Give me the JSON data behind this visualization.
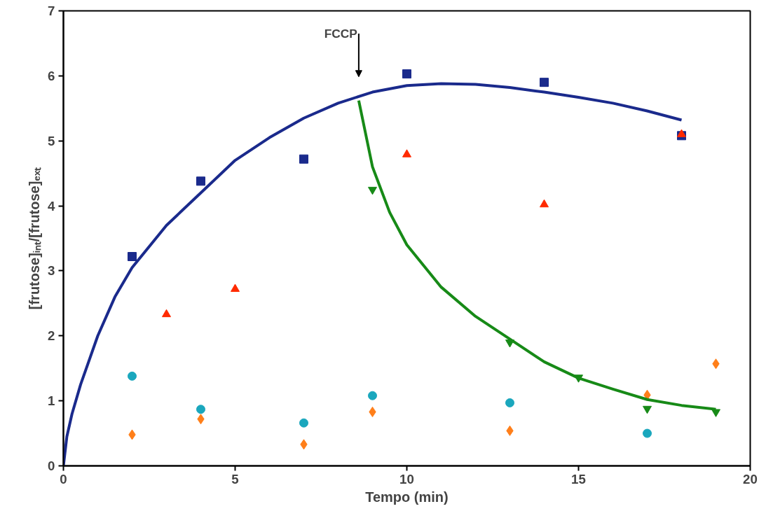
{
  "chart_data": {
    "type": "scatter",
    "xlabel": "Tempo (min)",
    "ylabel": "[frutose]ᵢₙₜ/[frutose]ₑₓₜ",
    "xlim": [
      0,
      20
    ],
    "ylim": [
      0,
      7
    ],
    "xticks": [
      0,
      5,
      10,
      15,
      20
    ],
    "yticks": [
      0,
      1,
      2,
      3,
      4,
      5,
      6,
      7
    ],
    "grid": false,
    "annotations": [
      "FCCP"
    ],
    "series": [
      {
        "marker": "square",
        "color": "#1a2a8c",
        "x": [
          2,
          4,
          7,
          10,
          14,
          18
        ],
        "values": [
          3.22,
          4.38,
          4.72,
          6.03,
          5.9,
          5.08
        ]
      },
      {
        "marker": "triangle",
        "color": "#ff2a00",
        "x": [
          3,
          5,
          10,
          14,
          18
        ],
        "values": [
          2.33,
          2.72,
          4.79,
          4.02,
          5.1
        ]
      },
      {
        "color": "#178a17",
        "x": [
          9,
          13,
          15,
          17,
          19
        ],
        "values": [
          4.25,
          1.9,
          1.36,
          0.88,
          0.83
        ]
      },
      {
        "marker": "circle",
        "color": "#1aa7bd",
        "x": [
          2,
          4,
          7,
          9,
          13,
          17
        ],
        "values": [
          1.38,
          0.87,
          0.66,
          1.08,
          0.97,
          0.5
        ]
      },
      {
        "marker": "diamond",
        "color": "#ff7f1a",
        "x": [
          2,
          4,
          7,
          9,
          13,
          17,
          19
        ],
        "values": [
          0.48,
          0.72,
          0.33,
          0.83,
          0.54,
          1.09,
          1.57
        ]
      },
      {
        "type": "line",
        "color": "#1a2a8c",
        "x": [
          0,
          0.1,
          0.25,
          0.5,
          1,
          1.5,
          2,
          3,
          4,
          5,
          6,
          7,
          8,
          9,
          10,
          11,
          12,
          13,
          14,
          15,
          16,
          17,
          18
        ],
        "values": [
          0,
          0.45,
          0.8,
          1.25,
          2.0,
          2.6,
          3.05,
          3.7,
          4.2,
          4.7,
          5.05,
          5.35,
          5.58,
          5.75,
          5.85,
          5.88,
          5.87,
          5.82,
          5.75,
          5.67,
          5.58,
          5.46,
          5.32
        ]
      },
      {
        "type": "line",
        "color": "#178a17",
        "x": [
          8.6,
          9,
          9.5,
          10,
          11,
          12,
          13,
          14,
          15,
          16,
          17,
          18,
          19
        ],
        "values": [
          5.62,
          4.6,
          3.9,
          3.4,
          2.75,
          2.3,
          1.95,
          1.6,
          1.35,
          1.18,
          1.02,
          0.93,
          0.87
        ]
      }
    ]
  }
}
